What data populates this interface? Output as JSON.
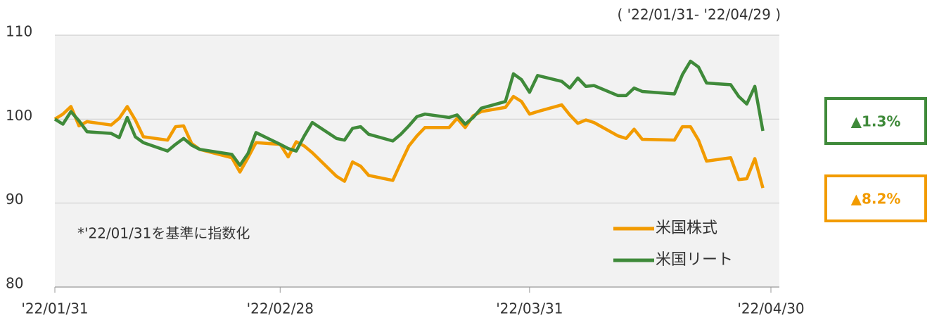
{
  "chart_data": {
    "type": "line",
    "period": "( '22/01/31- '22/04/29 )",
    "note": "*'22/01/31を基準に指数化",
    "x": [
      "2022-01-31",
      "2022-02-01",
      "2022-02-02",
      "2022-02-03",
      "2022-02-04",
      "2022-02-07",
      "2022-02-08",
      "2022-02-09",
      "2022-02-10",
      "2022-02-11",
      "2022-02-14",
      "2022-02-15",
      "2022-02-16",
      "2022-02-17",
      "2022-02-18",
      "2022-02-22",
      "2022-02-23",
      "2022-02-24",
      "2022-02-25",
      "2022-02-28",
      "2022-03-01",
      "2022-03-02",
      "2022-03-03",
      "2022-03-04",
      "2022-03-07",
      "2022-03-08",
      "2022-03-09",
      "2022-03-10",
      "2022-03-11",
      "2022-03-14",
      "2022-03-15",
      "2022-03-16",
      "2022-03-17",
      "2022-03-18",
      "2022-03-21",
      "2022-03-22",
      "2022-03-23",
      "2022-03-24",
      "2022-03-25",
      "2022-03-28",
      "2022-03-29",
      "2022-03-30",
      "2022-03-31",
      "2022-04-01",
      "2022-04-04",
      "2022-04-05",
      "2022-04-06",
      "2022-04-07",
      "2022-04-08",
      "2022-04-11",
      "2022-04-12",
      "2022-04-13",
      "2022-04-14",
      "2022-04-18",
      "2022-04-19",
      "2022-04-20",
      "2022-04-21",
      "2022-04-22",
      "2022-04-25",
      "2022-04-26",
      "2022-04-27",
      "2022-04-28",
      "2022-04-29"
    ],
    "series": [
      {
        "name": "米国株式",
        "color": "#f29b00",
        "values": [
          100,
          100.6,
          101.5,
          99.2,
          99.7,
          99.3,
          100.1,
          101.5,
          99.9,
          97.9,
          97.5,
          99.1,
          99.2,
          97.1,
          96.4,
          95.4,
          93.7,
          95.4,
          97.2,
          97.0,
          95.5,
          97.3,
          96.8,
          96.0,
          93.2,
          92.6,
          94.9,
          94.4,
          93.3,
          92.7,
          94.8,
          96.8,
          98.0,
          99.0,
          99.0,
          100.1,
          99.0,
          100.4,
          100.9,
          101.4,
          102.7,
          102.1,
          100.6,
          100.9,
          101.7,
          100.5,
          99.5,
          99.9,
          99.6,
          98.0,
          97.7,
          98.8,
          97.6,
          97.5,
          99.1,
          99.1,
          97.5,
          95.0,
          95.4,
          92.8,
          92.9,
          95.3,
          91.8
        ]
      },
      {
        "name": "米国リート",
        "color": "#3f8a3a",
        "values": [
          100,
          99.4,
          100.9,
          99.8,
          98.5,
          98.3,
          97.8,
          100.2,
          97.9,
          97.2,
          96.2,
          97.0,
          97.7,
          96.9,
          96.4,
          95.8,
          94.5,
          95.9,
          98.4,
          97.0,
          96.5,
          96.2,
          98.0,
          99.6,
          97.7,
          97.5,
          98.9,
          99.1,
          98.2,
          97.4,
          98.2,
          99.2,
          100.3,
          100.6,
          100.2,
          100.5,
          99.4,
          100.2,
          101.3,
          102.1,
          105.4,
          104.7,
          103.2,
          105.2,
          104.5,
          103.7,
          104.9,
          103.9,
          104.0,
          102.8,
          102.8,
          103.7,
          103.3,
          103.0,
          105.3,
          106.9,
          106.2,
          104.3,
          104.1,
          102.7,
          101.8,
          103.9,
          98.6
        ]
      }
    ],
    "xlim": [
      "2022-01-31",
      "2022-04-30"
    ],
    "xticks": [
      {
        "value": "2022-01-31",
        "label": "'22/01/31"
      },
      {
        "value": "2022-02-28",
        "label": "'22/02/28"
      },
      {
        "value": "2022-03-31",
        "label": "'22/03/31"
      },
      {
        "value": "2022-04-30",
        "label": "'22/04/30"
      }
    ],
    "ylim": [
      80,
      110
    ],
    "yticks": [
      80,
      90,
      100,
      110
    ],
    "grid": true,
    "annotations": [
      {
        "text": "▲1.3%",
        "color": "#3f8a3a"
      },
      {
        "text": "▲8.2%",
        "color": "#f29b00"
      }
    ]
  }
}
